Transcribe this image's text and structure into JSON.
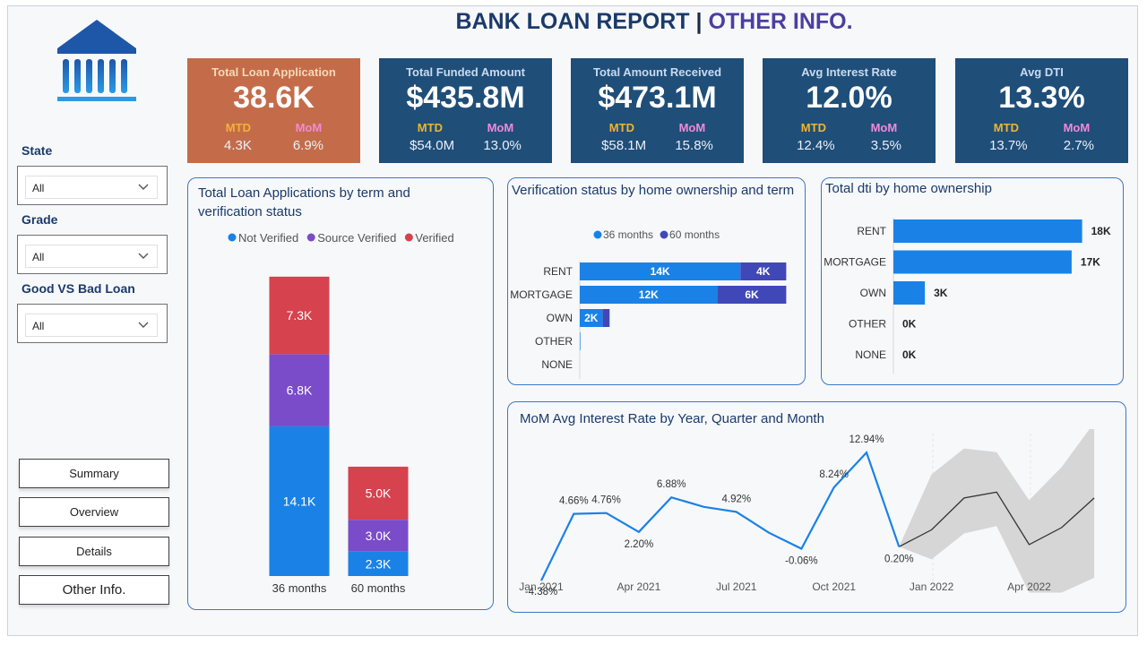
{
  "header": {
    "title_main": "BANK LOAN REPORT",
    "title_sep": "|",
    "title_sub": "OTHER INFO."
  },
  "colors": {
    "navy": "#1f4e79",
    "orange": "#c46c4a",
    "blue": "#1a82e6",
    "purple": "#7a4cc9",
    "red": "#d6424e",
    "indigo": "#4048b8"
  },
  "logo": {
    "icon": "bank-icon"
  },
  "filters": [
    {
      "label": "State",
      "value": "All"
    },
    {
      "label": "Grade",
      "value": "All"
    },
    {
      "label": "Good VS Bad Loan",
      "value": "All"
    }
  ],
  "nav": [
    {
      "label": "Summary"
    },
    {
      "label": "Overview"
    },
    {
      "label": "Details"
    },
    {
      "label": "Other Info."
    }
  ],
  "kpis": [
    {
      "title": "Total Loan  Application",
      "value": "38.6K",
      "mtd_label": "MTD",
      "mom_label": "MoM",
      "mtd": "4.3K",
      "mom": "6.9%"
    },
    {
      "title": "Total Funded Amount",
      "value": "$435.8M",
      "mtd_label": "MTD",
      "mom_label": "MoM",
      "mtd": "$54.0M",
      "mom": "13.0%"
    },
    {
      "title": "Total Amount Received",
      "value": "$473.1M",
      "mtd_label": "MTD",
      "mom_label": "MoM",
      "mtd": "$58.1M",
      "mom": "15.8%"
    },
    {
      "title": "Avg Interest Rate",
      "value": "12.0%",
      "mtd_label": "MTD",
      "mom_label": "MoM",
      "mtd": "12.4%",
      "mom": "3.5%"
    },
    {
      "title": "Avg DTI",
      "value": "13.3%",
      "mtd_label": "MTD",
      "mom_label": "MoM",
      "mtd": "13.7%",
      "mom": "2.7%"
    }
  ],
  "chart_data": [
    {
      "id": "term_verification",
      "type": "bar",
      "stacked": true,
      "title": "Total Loan Applications by term and verification status",
      "categories": [
        "36 months",
        "60 months"
      ],
      "series": [
        {
          "name": "Not Verified",
          "values": [
            14.1,
            2.3
          ],
          "labels": [
            "14.1K",
            "2.3K"
          ],
          "color": "#1a82e6"
        },
        {
          "name": "Source Verified",
          "values": [
            6.8,
            3.0
          ],
          "labels": [
            "6.8K",
            "3.0K"
          ],
          "color": "#7a4cc9"
        },
        {
          "name": "Verified",
          "values": [
            7.3,
            5.0
          ],
          "labels": [
            "7.3K",
            "5.0K"
          ],
          "color": "#d6424e"
        }
      ],
      "legend": "top"
    },
    {
      "id": "verification_home",
      "type": "bar",
      "orientation": "horizontal",
      "stacked": true,
      "title": "Verification status by home ownership and term",
      "categories": [
        "RENT",
        "MORTGAGE",
        "OWN",
        "OTHER",
        "NONE"
      ],
      "series": [
        {
          "name": "36 months",
          "values": [
            14,
            12,
            2,
            0.05,
            0
          ],
          "labels": [
            "14K",
            "12K",
            "2K",
            "",
            ""
          ],
          "color": "#1a82e6"
        },
        {
          "name": "60 months",
          "values": [
            4,
            6,
            0.6,
            0,
            0
          ],
          "labels": [
            "4K",
            "6K",
            "",
            "",
            ""
          ],
          "color": "#4048b8"
        }
      ],
      "legend": "top"
    },
    {
      "id": "dti_home",
      "type": "bar",
      "orientation": "horizontal",
      "title": "Total dti by home ownership",
      "categories": [
        "RENT",
        "MORTGAGE",
        "OWN",
        "OTHER",
        "NONE"
      ],
      "values": [
        18,
        17,
        3,
        0,
        0
      ],
      "labels": [
        "18K",
        "17K",
        "3K",
        "0K",
        "0K"
      ],
      "color": "#1a82e6"
    },
    {
      "id": "mom_interest",
      "type": "line",
      "title": "MoM Avg Interest Rate by Year, Quarter and Month",
      "x_ticks": [
        "Jan 2021",
        "Apr 2021",
        "Jul 2021",
        "Oct 2021",
        "Jan 2022",
        "Apr 2022"
      ],
      "points": [
        {
          "x": "Jan 2021",
          "y": -4.38,
          "label": "-4.38%"
        },
        {
          "x": "Feb 2021",
          "y": 4.66,
          "label": "4.66%"
        },
        {
          "x": "Mar 2021",
          "y": 4.76,
          "label": "4.76%"
        },
        {
          "x": "Apr 2021",
          "y": 2.2,
          "label": "2.20%"
        },
        {
          "x": "May 2021",
          "y": 6.88,
          "label": "6.88%"
        },
        {
          "x": "Jun 2021",
          "y": 5.6,
          "label": ""
        },
        {
          "x": "Jul 2021",
          "y": 4.92,
          "label": "4.92%"
        },
        {
          "x": "Aug 2021",
          "y": 2.1,
          "label": ""
        },
        {
          "x": "Sep 2021",
          "y": -0.06,
          "label": "-0.06%"
        },
        {
          "x": "Oct 2021",
          "y": 8.24,
          "label": "8.24%"
        },
        {
          "x": "Nov 2021",
          "y": 12.94,
          "label": "12.94%"
        },
        {
          "x": "Dec 2021",
          "y": 0.2,
          "label": "0.20%"
        }
      ],
      "forecast": [
        {
          "x": "Dec 2021",
          "y": 0.2,
          "lo": 0.2,
          "hi": 0.2
        },
        {
          "x": "Jan 2022",
          "y": 2.5,
          "lo": -1.5,
          "hi": 10.0
        },
        {
          "x": "Feb 2022",
          "y": 6.8,
          "lo": 2.0,
          "hi": 13.5
        },
        {
          "x": "Mar 2022",
          "y": 7.6,
          "lo": 3.0,
          "hi": 13.0
        },
        {
          "x": "Apr 2022",
          "y": 0.5,
          "lo": -6.0,
          "hi": 6.5
        },
        {
          "x": "May 2022",
          "y": 2.8,
          "lo": -6.0,
          "hi": 11.0
        },
        {
          "x": "Jun 2022",
          "y": 6.8,
          "lo": -4.0,
          "hi": 17.0
        }
      ]
    }
  ]
}
